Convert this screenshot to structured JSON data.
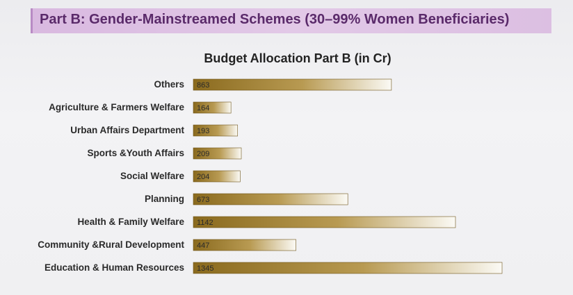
{
  "header": {
    "title": "Part B: Gender-Mainstreamed Schemes (30–99% Women Beneficiaries)"
  },
  "colors": {
    "banner": "#dcbfe2",
    "banner_text": "#5a2a6a",
    "bar_dark": "#8a6a1e",
    "bar_mid": "#b89a52",
    "bar_light": "#fbfaf5"
  },
  "chart_data": {
    "type": "bar",
    "orientation": "horizontal",
    "title": "Budget Allocation Part B (in Cr)",
    "xlabel": "",
    "ylabel": "",
    "xlim": [
      0,
      1345
    ],
    "grid": false,
    "categories": [
      "Others",
      "Agriculture & Farmers Welfare",
      "Urban Affairs Department",
      "Sports &Youth Affairs",
      "Social Welfare",
      "Planning",
      "Health & Family Welfare",
      "Community &Rural Development",
      "Education & Human Resources"
    ],
    "values": [
      863,
      164,
      193,
      209,
      204,
      673,
      1142,
      447,
      1345
    ],
    "data_labels": [
      "863",
      "164",
      "193",
      "209",
      "204",
      "673",
      "1142",
      "447",
      "1345"
    ]
  }
}
